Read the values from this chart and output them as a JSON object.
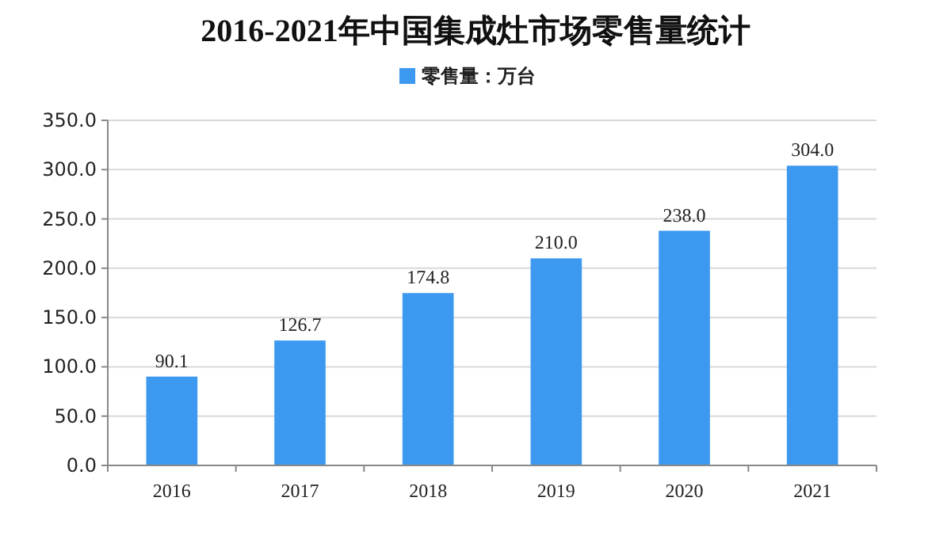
{
  "chart_data": {
    "type": "bar",
    "title": "2016-2021年中国集成灶市场零售量统计",
    "categories": [
      "2016",
      "2017",
      "2018",
      "2019",
      "2020",
      "2021"
    ],
    "series": [
      {
        "name": "零售量：万台",
        "color": "#3d99f0",
        "values": [
          90.1,
          126.7,
          174.8,
          210.0,
          238.0,
          304.0
        ]
      }
    ],
    "value_labels": [
      "90.1",
      "126.7",
      "174.8",
      "210.0",
      "238.0",
      "304.0"
    ],
    "ylim": [
      0,
      350
    ],
    "yticks": [
      {
        "value": 0,
        "label": "0.0"
      },
      {
        "value": 50,
        "label": "50.0"
      },
      {
        "value": 100,
        "label": "100.0"
      },
      {
        "value": 150,
        "label": "150.0"
      },
      {
        "value": 200,
        "label": "200.0"
      },
      {
        "value": 250,
        "label": "250.0"
      },
      {
        "value": 300,
        "label": "300.0"
      },
      {
        "value": 350,
        "label": "350.0"
      }
    ],
    "grid": "y",
    "legend": "top"
  }
}
